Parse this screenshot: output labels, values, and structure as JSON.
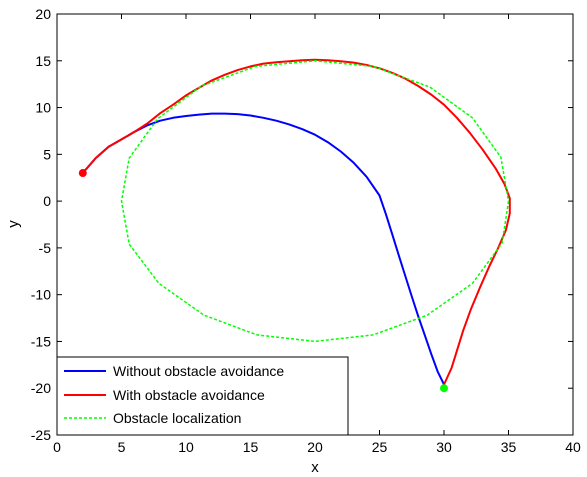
{
  "chart_data": {
    "type": "line",
    "xlabel": "x",
    "ylabel": "y",
    "xlim": [
      0,
      40
    ],
    "ylim": [
      -25,
      20
    ],
    "x_ticks": [
      "0",
      "5",
      "10",
      "15",
      "20",
      "25",
      "30",
      "35",
      "40"
    ],
    "y_ticks": [
      "20",
      "15",
      "10",
      "5",
      "0",
      "-5",
      "-10",
      "-15",
      "-20",
      "-25"
    ],
    "grid": false,
    "legend_position": "bottom-left",
    "series": [
      {
        "name": "Without obstacle avoidance",
        "color": "#0000ff",
        "style": "solid",
        "points": [
          [
            2,
            3
          ],
          [
            3,
            4.6
          ],
          [
            4,
            5.8
          ],
          [
            5,
            6.6
          ],
          [
            6,
            7.4
          ],
          [
            7,
            8.1
          ],
          [
            8,
            8.6
          ],
          [
            9,
            8.9
          ],
          [
            10,
            9.1
          ],
          [
            11,
            9.25
          ],
          [
            12,
            9.35
          ],
          [
            13,
            9.35
          ],
          [
            14,
            9.3
          ],
          [
            15,
            9.15
          ],
          [
            16,
            8.9
          ],
          [
            17,
            8.6
          ],
          [
            18,
            8.2
          ],
          [
            19,
            7.7
          ],
          [
            20,
            7.1
          ],
          [
            21,
            6.3
          ],
          [
            22,
            5.3
          ],
          [
            23,
            4.1
          ],
          [
            24,
            2.6
          ],
          [
            25,
            0.6
          ],
          [
            25.5,
            -1.4
          ],
          [
            26,
            -3.6
          ],
          [
            26.5,
            -5.8
          ],
          [
            27,
            -8
          ],
          [
            27.5,
            -10.2
          ],
          [
            28,
            -12.3
          ],
          [
            28.5,
            -14.3
          ],
          [
            29,
            -16.3
          ],
          [
            29.5,
            -18.2
          ],
          [
            30,
            -19.6
          ]
        ]
      },
      {
        "name": "With obstacle avoidance",
        "color": "#ff0000",
        "style": "solid",
        "points": [
          [
            2,
            3
          ],
          [
            3,
            4.6
          ],
          [
            4,
            5.8
          ],
          [
            5,
            6.6
          ],
          [
            6,
            7.4
          ],
          [
            7,
            8.3
          ],
          [
            8,
            9.4
          ],
          [
            9,
            10.3
          ],
          [
            10,
            11.3
          ],
          [
            11,
            12.1
          ],
          [
            12,
            12.9
          ],
          [
            13,
            13.5
          ],
          [
            14,
            14
          ],
          [
            15,
            14.4
          ],
          [
            16,
            14.7
          ],
          [
            17,
            14.85
          ],
          [
            18,
            14.95
          ],
          [
            19,
            15.05
          ],
          [
            20,
            15.1
          ],
          [
            21,
            15.05
          ],
          [
            22,
            14.95
          ],
          [
            23,
            14.8
          ],
          [
            24,
            14.55
          ],
          [
            25,
            14.2
          ],
          [
            26,
            13.7
          ],
          [
            27,
            13.1
          ],
          [
            28,
            12.3
          ],
          [
            29,
            11.4
          ],
          [
            30,
            10.3
          ],
          [
            31,
            8.9
          ],
          [
            32,
            7.3
          ],
          [
            33,
            5.5
          ],
          [
            34,
            3.5
          ],
          [
            34.7,
            1.8
          ],
          [
            35.1,
            0.3
          ],
          [
            35.1,
            -1.3
          ],
          [
            34.8,
            -3.1
          ],
          [
            34.2,
            -5
          ],
          [
            33.5,
            -7
          ],
          [
            32.8,
            -9.2
          ],
          [
            32.1,
            -11.5
          ],
          [
            31.5,
            -13.8
          ],
          [
            31,
            -16
          ],
          [
            30.6,
            -17.8
          ],
          [
            30.2,
            -19
          ],
          [
            30,
            -19.6
          ]
        ]
      },
      {
        "name": "Obstacle localization",
        "color": "#00ff00",
        "style": "dashed",
        "points": [
          [
            35,
            0
          ],
          [
            34.5,
            -4.5
          ],
          [
            32.2,
            -8.8
          ],
          [
            28.7,
            -12.2
          ],
          [
            24.5,
            -14.3
          ],
          [
            20,
            -15
          ],
          [
            15.5,
            -14.3
          ],
          [
            11.4,
            -12.2
          ],
          [
            7.9,
            -8.8
          ],
          [
            5.6,
            -4.6
          ],
          [
            5,
            0
          ],
          [
            5.6,
            4.6
          ],
          [
            7.8,
            8.8
          ],
          [
            11.2,
            12.3
          ],
          [
            15.4,
            14.4
          ],
          [
            20,
            15
          ],
          [
            24.5,
            14.4
          ],
          [
            28.9,
            12.2
          ],
          [
            32.2,
            8.9
          ],
          [
            34.4,
            4.7
          ],
          [
            35,
            0
          ]
        ]
      }
    ],
    "markers": [
      {
        "x": 2,
        "y": 3,
        "color": "#ff0000"
      },
      {
        "x": 30,
        "y": -20,
        "color": "#00ff00"
      }
    ]
  }
}
